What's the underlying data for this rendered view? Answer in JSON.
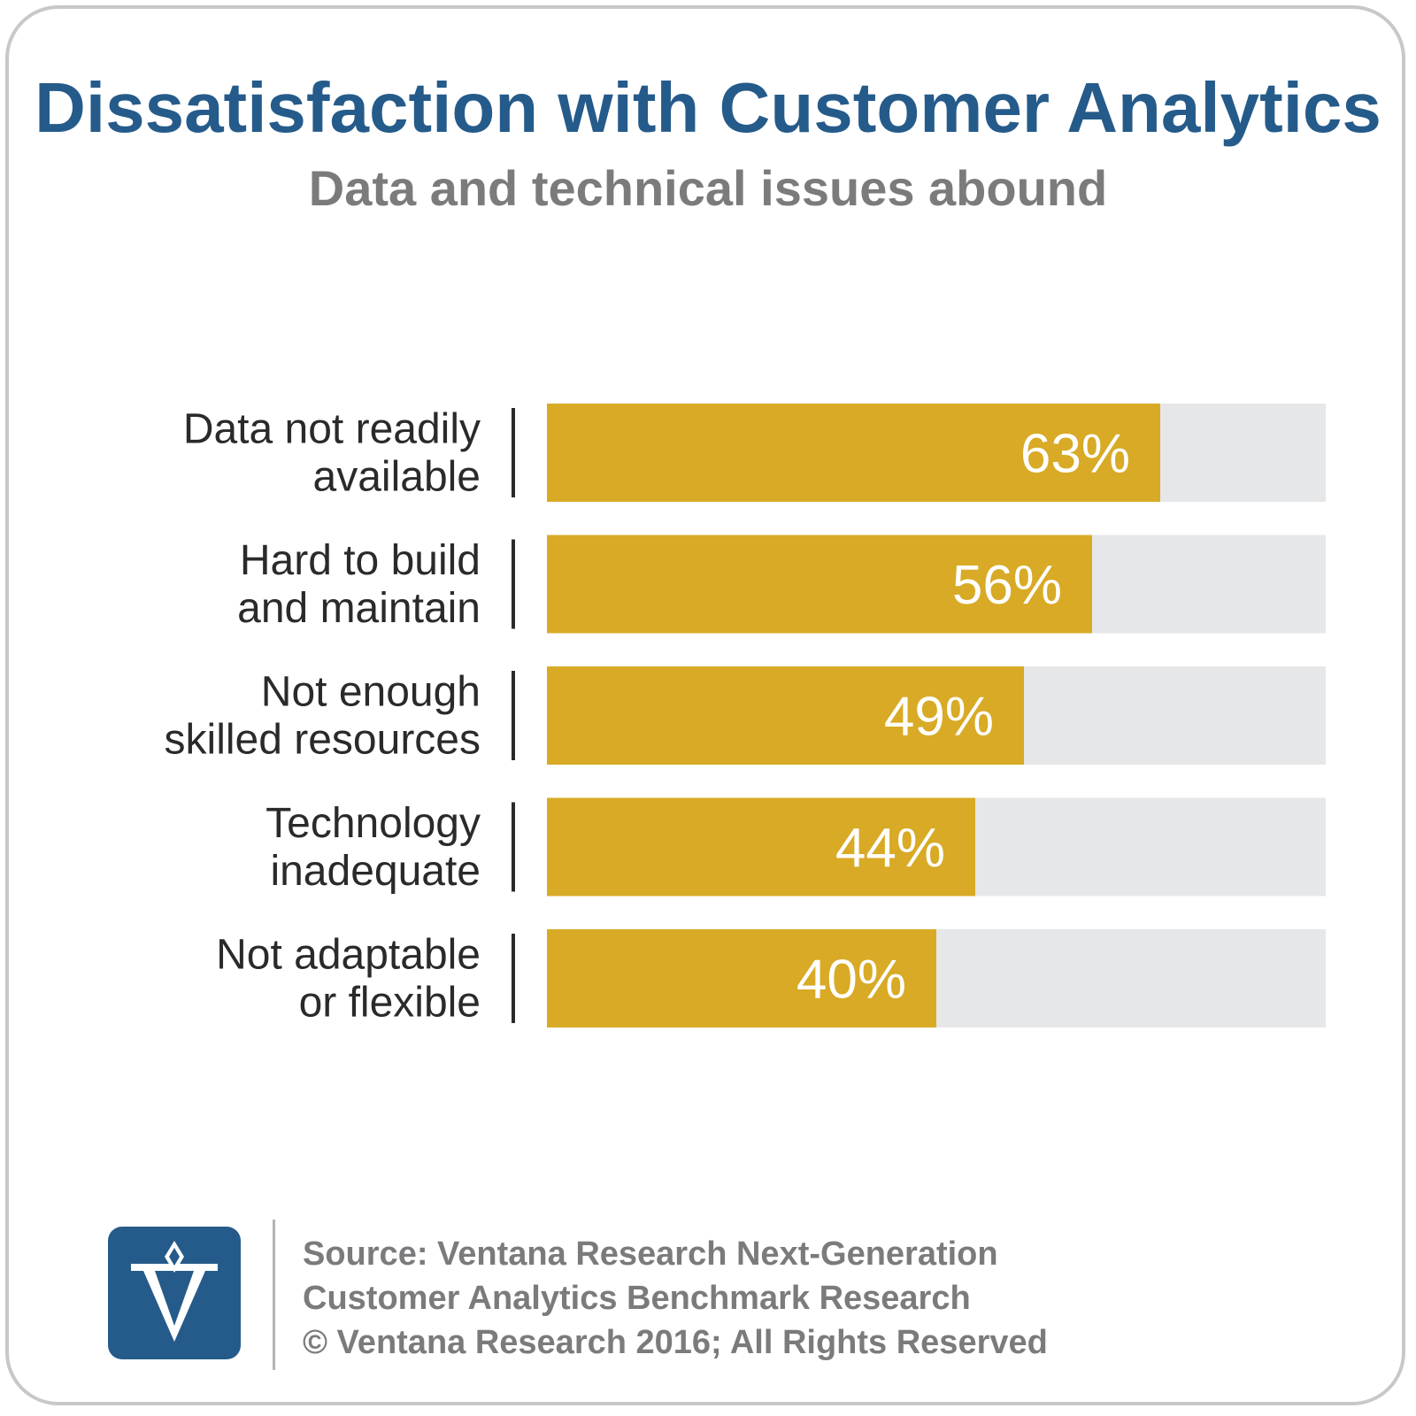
{
  "title": "Dissatisfaction with Customer Analytics",
  "subtitle": "Data and technical issues abound",
  "colors": {
    "title": "#255b8a",
    "subtitle": "#7b7b7d",
    "bar": "#d8aa25",
    "bar_track": "#e6e7e8",
    "logo": "#255b8a"
  },
  "logo": {
    "icon": "ventana-v-logo-icon"
  },
  "source": {
    "line1": "Source: Ventana Research Next-Generation",
    "line2": "Customer Analytics Benchmark Research",
    "line3": "© Ventana Research 2016; All Rights Reserved"
  },
  "chart_data": {
    "type": "bar",
    "orientation": "horizontal",
    "categories": [
      [
        "Data not readily",
        "available"
      ],
      [
        "Hard to build",
        "and maintain"
      ],
      [
        "Not enough",
        "skilled resources"
      ],
      [
        "Technology",
        "inadequate"
      ],
      [
        "Not adaptable",
        "or flexible"
      ]
    ],
    "values": [
      63,
      56,
      49,
      44,
      40
    ],
    "value_labels": [
      "63%",
      "56%",
      "49%",
      "44%",
      "40%"
    ],
    "xlim": [
      0,
      80
    ],
    "grid": false,
    "legend": "none"
  }
}
